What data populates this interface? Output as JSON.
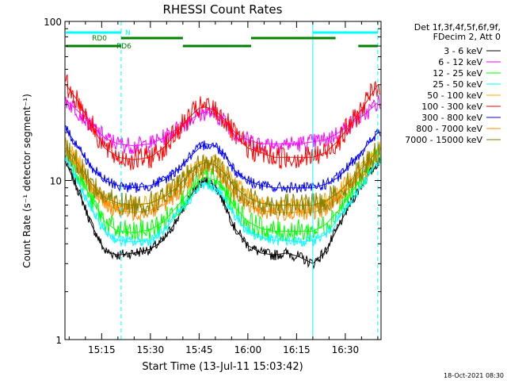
{
  "chart_data": {
    "type": "line",
    "title": "RHESSI Count Rates",
    "xlabel": "Start Time (13-Jul-11 15:03:42)",
    "ylabel": "Count Rate (s⁻¹ detector segment⁻¹)",
    "y_scale": "log",
    "ylim": [
      1,
      100
    ],
    "xlim": [
      "15:03:42",
      "16:41:00"
    ],
    "x_ticks": [
      "15:15",
      "15:30",
      "15:45",
      "16:00",
      "16:15",
      "16:30"
    ],
    "y_ticks": [
      "1",
      "10",
      "100"
    ],
    "grid": false,
    "legend_position": "top-right",
    "legend_header": [
      "Det 1f,3f,4f,5f,6f,9f,",
      "FDecim 2, Att 0"
    ],
    "x": [
      "15:04",
      "15:08",
      "15:12",
      "15:16",
      "15:20",
      "15:25",
      "15:30",
      "15:34",
      "15:38",
      "15:42",
      "15:45",
      "15:47",
      "15:50",
      "15:53",
      "15:56",
      "16:00",
      "16:04",
      "16:08",
      "16:12",
      "16:16",
      "16:20",
      "16:24",
      "16:28",
      "16:32",
      "16:36",
      "16:40"
    ],
    "series": [
      {
        "name": "3 - 6 keV",
        "color": "#000000",
        "values": [
          13,
          8.5,
          5.2,
          3.6,
          3.4,
          3.5,
          3.7,
          4.2,
          5.6,
          7.8,
          9.5,
          10,
          9.3,
          7,
          5,
          3.9,
          3.5,
          3.4,
          3.5,
          3.3,
          3.0,
          3.6,
          5.2,
          7.5,
          10,
          13
        ]
      },
      {
        "name": "6 - 12 keV",
        "color": "#ff00ff",
        "values": [
          32,
          27,
          22,
          18.5,
          17,
          16.5,
          17,
          18.5,
          21,
          24,
          26,
          27,
          26,
          23.5,
          20,
          18,
          17,
          17,
          17,
          17,
          17.5,
          18,
          20,
          23,
          26,
          31
        ]
      },
      {
        "name": "12 - 25 keV",
        "color": "#00ff00",
        "values": [
          16,
          11,
          7.5,
          5.5,
          4.8,
          4.7,
          4.9,
          5.5,
          6.8,
          8.5,
          10,
          10.5,
          10,
          8.5,
          6.8,
          5.5,
          5,
          4.8,
          4.8,
          4.8,
          4.8,
          5.3,
          6.5,
          8.5,
          11,
          15
        ]
      },
      {
        "name": "25 - 50 keV",
        "color": "#00ffff",
        "values": [
          14,
          9.5,
          6.5,
          4.8,
          4.2,
          4.1,
          4.2,
          4.8,
          6,
          7.6,
          9,
          9.5,
          9,
          7.6,
          6,
          4.8,
          4.4,
          4.2,
          4.2,
          4.1,
          4.2,
          4.6,
          5.8,
          7.5,
          10,
          13
        ]
      },
      {
        "name": "50 - 100 keV",
        "color": "#ffa500",
        "values": [
          17,
          13,
          9.5,
          7.5,
          7,
          7,
          7.2,
          8,
          9.5,
          11.5,
          13,
          13.5,
          13,
          11.5,
          9.5,
          8,
          7.3,
          7,
          7,
          7,
          7,
          7.5,
          8.5,
          10.5,
          13,
          16
        ]
      },
      {
        "name": "100 - 300 keV",
        "color": "#ff0000",
        "values": [
          40,
          31,
          22,
          16,
          14,
          13.5,
          14,
          16,
          20,
          25,
          28.5,
          29,
          27.5,
          24,
          19,
          16,
          15,
          14,
          14,
          14,
          14,
          15,
          18,
          23,
          30,
          40
        ]
      },
      {
        "name": "300 - 800 keV",
        "color": "#0000ff",
        "values": [
          21,
          16,
          12,
          10,
          9.3,
          9,
          9.3,
          10,
          11.5,
          14,
          16,
          17,
          16.5,
          14.5,
          11.5,
          10,
          9.3,
          9,
          9,
          9,
          9,
          9.5,
          10.5,
          13,
          16,
          20
        ]
      },
      {
        "name": "800 - 7000 keV",
        "color": "#ff8c00",
        "values": [
          15,
          12,
          9,
          7.2,
          6.5,
          6.3,
          6.5,
          7,
          8.3,
          10,
          11.5,
          12,
          11.5,
          10,
          8.3,
          7,
          6.5,
          6.3,
          6.3,
          6.3,
          6.3,
          6.7,
          7.7,
          9.5,
          11.5,
          14.5
        ]
      },
      {
        "name": "7000 - 15000 keV",
        "color": "#808000",
        "values": [
          16,
          12.5,
          9.5,
          7.8,
          7.2,
          7,
          7.2,
          7.8,
          9,
          11,
          12.5,
          13,
          12.5,
          11,
          9,
          7.8,
          7.2,
          7,
          7,
          7,
          7,
          7.4,
          8.4,
          10.2,
          12.5,
          15.5
        ]
      }
    ],
    "annotations": {
      "vertical_lines": [
        {
          "time": "15:21",
          "style": "dashed",
          "color": "#00ffff"
        },
        {
          "time": "16:20",
          "style": "solid",
          "color": "#00ffff"
        },
        {
          "time": "16:40",
          "style": "dashed",
          "color": "#00ffff"
        }
      ],
      "flag_bars": [
        {
          "label": "N",
          "color": "#00ffff",
          "segments": [
            [
              "15:04",
              "15:21"
            ],
            [
              "16:20",
              "16:40"
            ]
          ]
        },
        {
          "label": "RD0",
          "color": "#008000",
          "segments": [
            [
              "15:21",
              "15:40"
            ],
            [
              "16:01",
              "16:27"
            ]
          ]
        },
        {
          "label": "RD6",
          "color": "#008000",
          "segments": [
            [
              "15:04",
              "15:21"
            ],
            [
              "15:40",
              "16:01"
            ],
            [
              "16:34",
              "16:40"
            ]
          ]
        }
      ]
    },
    "footer": "18-Oct-2021 08:30"
  }
}
